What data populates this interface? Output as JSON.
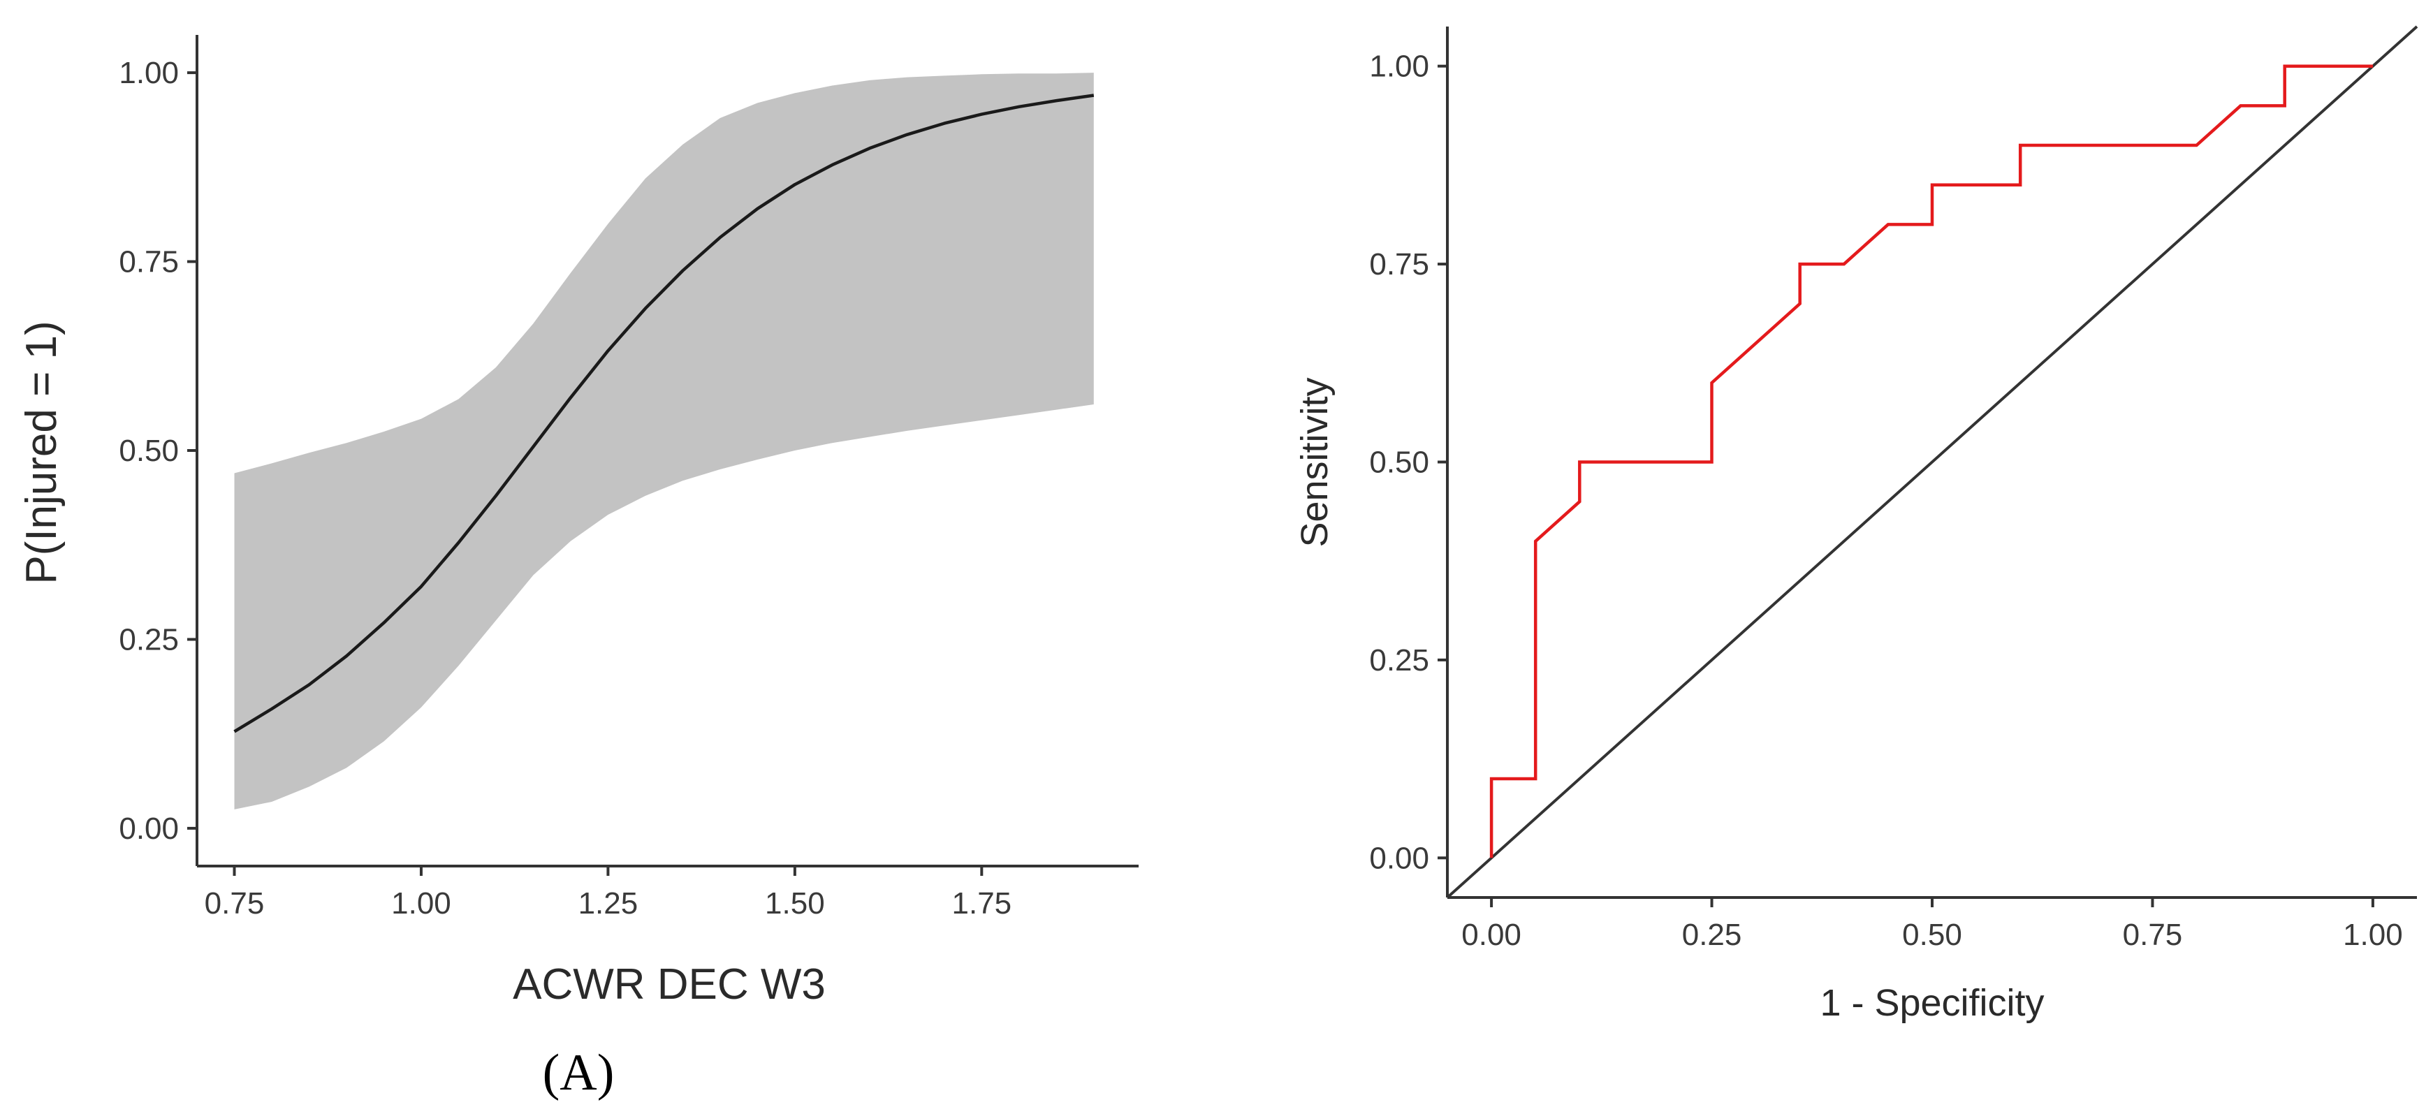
{
  "figure": {
    "panel_label": "(A)"
  },
  "chart_data": [
    {
      "type": "line",
      "name": "logistic-probability",
      "title": "",
      "xlabel": "ACWR DEC W3",
      "ylabel": "P(Injured = 1)",
      "xlim": [
        0.7,
        1.96
      ],
      "ylim": [
        -0.05,
        1.05
      ],
      "x_ticks": [
        0.75,
        1.0,
        1.25,
        1.5,
        1.75
      ],
      "x_tick_labels": [
        "0.75",
        "1.00",
        "1.25",
        "1.50",
        "1.75"
      ],
      "y_ticks": [
        0,
        0.25,
        0.5,
        0.75,
        1.0
      ],
      "y_tick_labels": [
        "0.00",
        "0.25",
        "0.50",
        "0.75",
        "1.00"
      ],
      "series": [
        {
          "name": "fit",
          "x": [
            0.75,
            0.8,
            0.85,
            0.9,
            0.95,
            1.0,
            1.05,
            1.1,
            1.15,
            1.2,
            1.25,
            1.3,
            1.35,
            1.4,
            1.45,
            1.5,
            1.55,
            1.6,
            1.65,
            1.7,
            1.75,
            1.8,
            1.85,
            1.9
          ],
          "y": [
            0.128,
            0.158,
            0.19,
            0.228,
            0.272,
            0.32,
            0.378,
            0.44,
            0.505,
            0.57,
            0.632,
            0.688,
            0.738,
            0.782,
            0.82,
            0.852,
            0.878,
            0.9,
            0.918,
            0.933,
            0.945,
            0.955,
            0.963,
            0.97
          ],
          "color": "#1a1a1a"
        },
        {
          "name": "confidence-band",
          "x": [
            0.75,
            0.8,
            0.85,
            0.9,
            0.95,
            1.0,
            1.05,
            1.1,
            1.15,
            1.2,
            1.25,
            1.3,
            1.35,
            1.4,
            1.45,
            1.5,
            1.55,
            1.6,
            1.65,
            1.7,
            1.75,
            1.8,
            1.85,
            1.9
          ],
          "lower": [
            0.025,
            0.035,
            0.055,
            0.08,
            0.115,
            0.16,
            0.215,
            0.275,
            0.335,
            0.38,
            0.415,
            0.44,
            0.46,
            0.475,
            0.488,
            0.5,
            0.51,
            0.518,
            0.526,
            0.533,
            0.54,
            0.547,
            0.554,
            0.561
          ],
          "upper": [
            0.47,
            0.483,
            0.497,
            0.51,
            0.525,
            0.542,
            0.568,
            0.61,
            0.668,
            0.735,
            0.8,
            0.86,
            0.905,
            0.94,
            0.96,
            0.973,
            0.983,
            0.99,
            0.994,
            0.996,
            0.998,
            0.999,
            0.999,
            1.0
          ],
          "color": "#c3c3c3"
        }
      ]
    },
    {
      "type": "line",
      "name": "roc-curve",
      "title": "",
      "xlabel": "1 - Specificity",
      "ylabel": "Sensitivity",
      "xlim": [
        -0.05,
        1.05
      ],
      "ylim": [
        -0.05,
        1.05
      ],
      "x_ticks": [
        0,
        0.25,
        0.5,
        0.75,
        1.0
      ],
      "x_tick_labels": [
        "0.00",
        "0.25",
        "0.50",
        "0.75",
        "1.00"
      ],
      "y_ticks": [
        0,
        0.25,
        0.5,
        0.75,
        1.0
      ],
      "y_tick_labels": [
        "0.00",
        "0.25",
        "0.50",
        "0.75",
        "1.00"
      ],
      "series": [
        {
          "name": "roc",
          "x": [
            0.0,
            0.0,
            0.05,
            0.05,
            0.1,
            0.1,
            0.25,
            0.25,
            0.35,
            0.35,
            0.4,
            0.45,
            0.5,
            0.5,
            0.6,
            0.6,
            0.8,
            0.85,
            0.9,
            0.9,
            1.0
          ],
          "y": [
            0.0,
            0.1,
            0.1,
            0.4,
            0.45,
            0.5,
            0.5,
            0.6,
            0.7,
            0.75,
            0.75,
            0.8,
            0.8,
            0.85,
            0.85,
            0.9,
            0.9,
            0.95,
            0.95,
            1.0,
            1.0
          ],
          "color": "#e41a1c"
        },
        {
          "name": "reference-diagonal",
          "x": [
            -0.05,
            1.05
          ],
          "y": [
            -0.05,
            1.05
          ],
          "color": "#333333"
        }
      ]
    }
  ]
}
